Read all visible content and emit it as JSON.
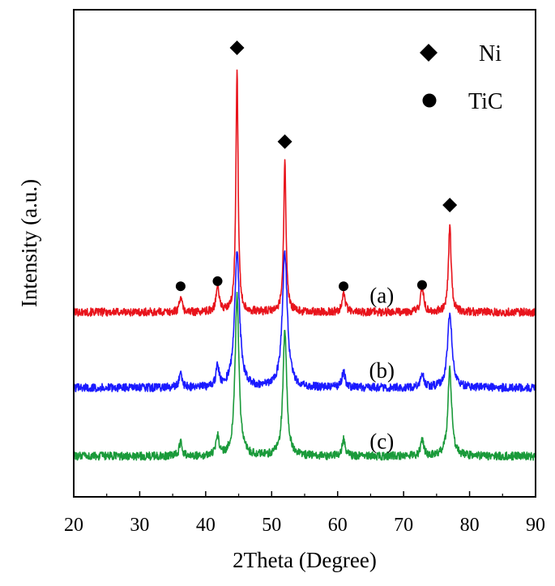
{
  "chart_data": {
    "type": "line",
    "title": "",
    "xlabel": "2Theta (Degree)",
    "ylabel": "Intensity (a.u.)",
    "xlim": [
      20,
      90
    ],
    "x_ticks": [
      20,
      30,
      40,
      50,
      60,
      70,
      80,
      90
    ],
    "y_ticks_shown": false,
    "grid": false,
    "legend": {
      "placement": "top-right",
      "entries": [
        {
          "marker": "diamond",
          "label": "Ni"
        },
        {
          "marker": "circle",
          "label": "TiC"
        }
      ]
    },
    "series": [
      {
        "name": "(a)",
        "color": "#e8141c",
        "baseline": 0.78,
        "peaks": [
          {
            "x": 36.2,
            "height": 0.65,
            "width": 0.22
          },
          {
            "x": 41.8,
            "height": 1.05,
            "width": 0.28
          },
          {
            "x": 44.75,
            "height": 9.6,
            "width": 0.2
          },
          {
            "x": 52.0,
            "height": 5.9,
            "width": 0.22
          },
          {
            "x": 60.9,
            "height": 0.8,
            "width": 0.28
          },
          {
            "x": 72.8,
            "height": 1.0,
            "width": 0.28
          },
          {
            "x": 77.0,
            "height": 3.4,
            "width": 0.25
          }
        ]
      },
      {
        "name": "(b)",
        "color": "#1a1aff",
        "baseline": -2.2,
        "peaks": [
          {
            "x": 36.2,
            "height": 0.6,
            "width": 0.25
          },
          {
            "x": 41.8,
            "height": 0.85,
            "width": 0.25
          },
          {
            "x": 44.75,
            "height": 5.3,
            "width": 0.45
          },
          {
            "x": 52.0,
            "height": 5.3,
            "width": 0.45
          },
          {
            "x": 60.9,
            "height": 0.6,
            "width": 0.3
          },
          {
            "x": 72.8,
            "height": 0.6,
            "width": 0.3
          },
          {
            "x": 77.0,
            "height": 3.0,
            "width": 0.4
          }
        ]
      },
      {
        "name": "(c)",
        "color": "#1a9a3a",
        "baseline": -4.9,
        "peaks": [
          {
            "x": 36.2,
            "height": 0.55,
            "width": 0.25
          },
          {
            "x": 41.8,
            "height": 0.85,
            "width": 0.25
          },
          {
            "x": 44.75,
            "height": 6.3,
            "width": 0.35
          },
          {
            "x": 52.0,
            "height": 4.9,
            "width": 0.35
          },
          {
            "x": 60.9,
            "height": 0.65,
            "width": 0.28
          },
          {
            "x": 72.8,
            "height": 0.65,
            "width": 0.28
          },
          {
            "x": 77.0,
            "height": 3.4,
            "width": 0.35
          }
        ]
      }
    ],
    "ylim": [
      -6.5,
      12.7
    ],
    "phase_markers": [
      {
        "phase": "Ni",
        "marker": "diamond",
        "x": 44.75,
        "y": 11.2
      },
      {
        "phase": "Ni",
        "marker": "diamond",
        "x": 52.0,
        "y": 7.5
      },
      {
        "phase": "Ni",
        "marker": "diamond",
        "x": 77.0,
        "y": 5.0
      },
      {
        "phase": "TiC",
        "marker": "circle",
        "x": 36.2,
        "y": 1.8
      },
      {
        "phase": "TiC",
        "marker": "circle",
        "x": 41.8,
        "y": 2.0
      },
      {
        "phase": "TiC",
        "marker": "circle",
        "x": 60.9,
        "y": 1.8
      },
      {
        "phase": "TiC",
        "marker": "circle",
        "x": 72.8,
        "y": 1.85
      }
    ],
    "curve_labels": [
      {
        "text": "(a)",
        "x": 66.7,
        "y": 1.15
      },
      {
        "text": "(b)",
        "x": 66.7,
        "y": -1.8
      },
      {
        "text": "(c)",
        "x": 66.7,
        "y": -4.6
      }
    ]
  }
}
